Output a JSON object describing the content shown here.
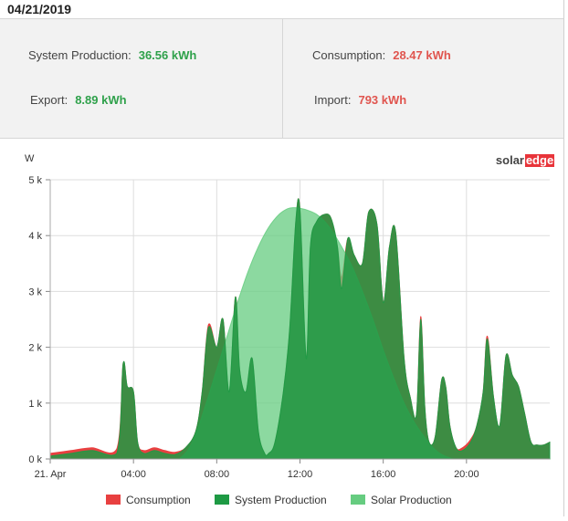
{
  "header": {
    "date": "04/21/2019"
  },
  "summary": {
    "system_production": {
      "label": "System Production:",
      "value": "36.56 kWh",
      "color": "#2fa14b"
    },
    "export": {
      "label": "Export:",
      "value": "8.89 kWh",
      "color": "#2fa14b"
    },
    "consumption": {
      "label": "Consumption:",
      "value": "28.47 kWh",
      "color": "#e0554f"
    },
    "import": {
      "label": "Import:",
      "value": "793 kWh",
      "color": "#e0554f"
    }
  },
  "brand": {
    "part1": "solar",
    "part2": "edge"
  },
  "chart_data": {
    "type": "area",
    "ylabel": "W",
    "ylim": [
      0,
      5000
    ],
    "xlim": [
      0,
      24
    ],
    "y_ticks": [
      {
        "value": 0,
        "label": "0 k"
      },
      {
        "value": 1000,
        "label": "1 k"
      },
      {
        "value": 2000,
        "label": "2 k"
      },
      {
        "value": 3000,
        "label": "3 k"
      },
      {
        "value": 4000,
        "label": "4 k"
      },
      {
        "value": 5000,
        "label": "5 k"
      }
    ],
    "x_ticks": [
      {
        "value": 0,
        "label": "21. Apr"
      },
      {
        "value": 4,
        "label": "04:00"
      },
      {
        "value": 8,
        "label": "08:00"
      },
      {
        "value": 12,
        "label": "12:00"
      },
      {
        "value": 16,
        "label": "16:00"
      },
      {
        "value": 20,
        "label": "20:00"
      }
    ],
    "grid": true,
    "legend_position": "bottom",
    "series": [
      {
        "name": "Solar Production",
        "color": "#66cc80",
        "opacity": 0.75,
        "x": [
          6.2,
          6.6,
          7.0,
          7.5,
          8.0,
          8.5,
          9.0,
          9.5,
          10.0,
          10.5,
          11.0,
          11.4,
          11.7,
          12.0,
          12.4,
          12.8,
          13.2,
          13.6,
          14.0,
          14.5,
          15.0,
          15.5,
          16.0,
          16.5,
          17.0,
          17.5,
          18.0,
          18.4,
          18.8,
          19.2,
          19.4
        ],
        "y": [
          0,
          150,
          450,
          1000,
          1600,
          2200,
          2800,
          3350,
          3800,
          4150,
          4380,
          4480,
          4500,
          4490,
          4450,
          4380,
          4250,
          4050,
          3800,
          3450,
          3000,
          2500,
          1950,
          1450,
          1000,
          650,
          380,
          200,
          80,
          20,
          0
        ]
      },
      {
        "name": "System Production",
        "color": "#1e9a44",
        "opacity": 0.85,
        "x": [
          0,
          1,
          2,
          3.2,
          3.5,
          3.7,
          4.0,
          4.2,
          4.5,
          5.0,
          5.5,
          6.0,
          6.5,
          7.0,
          7.3,
          7.6,
          8.0,
          8.3,
          8.6,
          8.9,
          9.1,
          9.4,
          9.7,
          10.0,
          10.3,
          10.5,
          10.8,
          11.2,
          11.5,
          11.8,
          12.0,
          12.3,
          12.5,
          12.8,
          13.2,
          13.5,
          13.8,
          14.0,
          14.3,
          14.6,
          15.0,
          15.3,
          15.7,
          16.0,
          16.3,
          16.6,
          17.0,
          17.3,
          17.6,
          17.8,
          18.0,
          18.2,
          18.5,
          18.8,
          19.0,
          19.2,
          19.5,
          19.8,
          20.2,
          20.5,
          20.8,
          21.0,
          21.3,
          21.6,
          21.9,
          22.2,
          22.5,
          22.8,
          23.1,
          23.4,
          23.7,
          24
        ],
        "y": [
          50,
          100,
          150,
          100,
          1700,
          1300,
          1200,
          300,
          100,
          150,
          100,
          80,
          200,
          500,
          1200,
          2350,
          2000,
          2500,
          1200,
          2900,
          1600,
          1200,
          1800,
          500,
          100,
          100,
          300,
          1200,
          2300,
          4250,
          4450,
          1800,
          3800,
          4250,
          4380,
          4300,
          3800,
          3050,
          3950,
          3650,
          3500,
          4420,
          4200,
          2800,
          3800,
          4050,
          1800,
          1100,
          800,
          2500,
          900,
          300,
          400,
          1400,
          1300,
          600,
          200,
          150,
          300,
          600,
          1200,
          2150,
          1100,
          600,
          1850,
          1500,
          1300,
          800,
          300,
          250,
          250,
          300
        ]
      },
      {
        "name": "Consumption",
        "color": "#e84040",
        "opacity": 1,
        "x": [
          0,
          1,
          2,
          3.2,
          3.5,
          3.7,
          4.0,
          4.2,
          4.5,
          5.0,
          5.5,
          6.0,
          6.5,
          7.0,
          7.3,
          7.6,
          8.0,
          8.3,
          8.6,
          8.9,
          9.1,
          9.4,
          9.7,
          10.0,
          10.3,
          10.5,
          10.8,
          11.2,
          11.5,
          11.8,
          12.0,
          12.3,
          12.5,
          12.8,
          13.2,
          13.5,
          13.8,
          14.0,
          14.3,
          14.6,
          15.0,
          15.3,
          15.7,
          16.0,
          16.3,
          16.6,
          17.0,
          17.3,
          17.6,
          17.8,
          18.0,
          18.2,
          18.5,
          18.8,
          19.0,
          19.2,
          19.5,
          19.8,
          20.2,
          20.5,
          20.8,
          21.0,
          21.3,
          21.6,
          21.9,
          22.2,
          22.5,
          22.8,
          23.1,
          23.4,
          23.7,
          24
        ],
        "y": [
          100,
          150,
          200,
          180,
          1700,
          1300,
          1200,
          300,
          150,
          200,
          150,
          120,
          200,
          500,
          1200,
          2400,
          2000,
          2500,
          1200,
          2900,
          1600,
          1200,
          1800,
          500,
          100,
          100,
          300,
          1200,
          2300,
          4250,
          4450,
          1800,
          3800,
          4250,
          4380,
          4300,
          3800,
          3250,
          3950,
          3650,
          3500,
          4420,
          4200,
          2800,
          3800,
          4050,
          1800,
          1100,
          800,
          2550,
          900,
          300,
          400,
          1400,
          1300,
          600,
          200,
          200,
          350,
          600,
          1200,
          2200,
          1100,
          600,
          1850,
          1500,
          1300,
          800,
          300,
          250,
          250,
          300
        ]
      }
    ]
  },
  "legend": [
    {
      "label": "Consumption",
      "color": "#e84040"
    },
    {
      "label": "System Production",
      "color": "#1e9a44"
    },
    {
      "label": "Solar Production",
      "color": "#66cc80"
    }
  ]
}
